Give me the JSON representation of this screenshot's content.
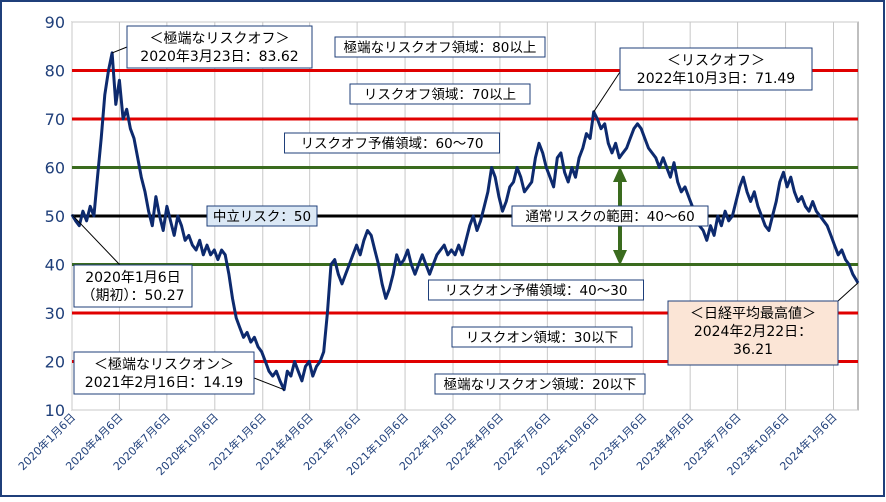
{
  "chart_data": {
    "type": "line",
    "ylim": [
      10,
      90
    ],
    "yticks": [
      10,
      20,
      30,
      40,
      50,
      60,
      70,
      80,
      90
    ],
    "x_range": [
      "2020-01-06",
      "2024-02-22"
    ],
    "xticks": [
      "2020年1月6日",
      "2020年4月6日",
      "2020年7月6日",
      "2020年10月6日",
      "2021年1月6日",
      "2021年4月6日",
      "2021年7月6日",
      "2021年10月6日",
      "2022年1月6日",
      "2022年4月6日",
      "2022年7月6日",
      "2022年10月6日",
      "2023年1月6日",
      "2023年4月6日",
      "2023年7月6日",
      "2023年10月6日",
      "2024年1月6日"
    ],
    "reference_lines": [
      {
        "value": 80,
        "color": "#e00000",
        "label": "極端なリスクオフ領域：80以上"
      },
      {
        "value": 70,
        "color": "#e00000",
        "label": "リスクオフ領域：70以上"
      },
      {
        "value": 60,
        "color": "#3a6b1e",
        "label": "リスクオフ予備領域：60～70"
      },
      {
        "value": 50,
        "color": "#000000",
        "label": "中立リスク：50"
      },
      {
        "value": 40,
        "color": "#3a6b1e",
        "label": "リスクオン予備領域：40～30"
      },
      {
        "value": 30,
        "color": "#e00000",
        "label": "リスクオン領域：30以下"
      },
      {
        "value": 20,
        "color": "#e00000",
        "label": "極端なリスクオン領域：20以下"
      }
    ],
    "normal_range_label": "通常リスクの範囲：40～60",
    "annotations": [
      {
        "title": "＜極端なリスクオフ＞",
        "text": "2020年3月23日：83.62",
        "date": "2020-03-23",
        "value": 83.62
      },
      {
        "title": "＜リスクオフ＞",
        "text": "2022年10月3日：71.49",
        "date": "2022-10-03",
        "value": 71.49
      },
      {
        "title": "2020年1月6日",
        "text": "（期初）：50.27",
        "date": "2020-01-06",
        "value": 50.27
      },
      {
        "title": "＜極端なリスクオン＞",
        "text": "2021年2月16日：14.19",
        "date": "2021-02-16",
        "value": 14.19
      },
      {
        "title": "＜日経平均最高値＞",
        "text": "2024年2月22日：",
        "value_text": "36.21",
        "date": "2024-02-22",
        "value": 36.21
      }
    ],
    "series": [
      {
        "color": "#0d2a6e",
        "points": [
          [
            "2020-01-06",
            50.27
          ],
          [
            "2020-01-13",
            49
          ],
          [
            "2020-01-20",
            48
          ],
          [
            "2020-01-27",
            51
          ],
          [
            "2020-02-03",
            49
          ],
          [
            "2020-02-10",
            52
          ],
          [
            "2020-02-17",
            50
          ],
          [
            "2020-02-24",
            58
          ],
          [
            "2020-03-02",
            66
          ],
          [
            "2020-03-09",
            75
          ],
          [
            "2020-03-16",
            80
          ],
          [
            "2020-03-23",
            83.62
          ],
          [
            "2020-03-30",
            73
          ],
          [
            "2020-04-06",
            78
          ],
          [
            "2020-04-13",
            70
          ],
          [
            "2020-04-20",
            72
          ],
          [
            "2020-04-27",
            68
          ],
          [
            "2020-05-04",
            66
          ],
          [
            "2020-05-11",
            62
          ],
          [
            "2020-05-18",
            58
          ],
          [
            "2020-05-25",
            55
          ],
          [
            "2020-06-01",
            51
          ],
          [
            "2020-06-08",
            48
          ],
          [
            "2020-06-15",
            54
          ],
          [
            "2020-06-22",
            50
          ],
          [
            "2020-06-29",
            47
          ],
          [
            "2020-07-06",
            52
          ],
          [
            "2020-07-13",
            49
          ],
          [
            "2020-07-20",
            46
          ],
          [
            "2020-07-27",
            50
          ],
          [
            "2020-08-03",
            48
          ],
          [
            "2020-08-10",
            45
          ],
          [
            "2020-08-17",
            46
          ],
          [
            "2020-08-24",
            44
          ],
          [
            "2020-08-31",
            43
          ],
          [
            "2020-09-07",
            45
          ],
          [
            "2020-09-14",
            42
          ],
          [
            "2020-09-21",
            44
          ],
          [
            "2020-09-28",
            42
          ],
          [
            "2020-10-05",
            43
          ],
          [
            "2020-10-12",
            41
          ],
          [
            "2020-10-19",
            43
          ],
          [
            "2020-10-26",
            42
          ],
          [
            "2020-11-02",
            38
          ],
          [
            "2020-11-09",
            33
          ],
          [
            "2020-11-16",
            29
          ],
          [
            "2020-11-23",
            27
          ],
          [
            "2020-11-30",
            25
          ],
          [
            "2020-12-07",
            26
          ],
          [
            "2020-12-14",
            24
          ],
          [
            "2020-12-21",
            25
          ],
          [
            "2020-12-28",
            23
          ],
          [
            "2021-01-04",
            22
          ],
          [
            "2021-01-11",
            20
          ],
          [
            "2021-01-18",
            18
          ],
          [
            "2021-01-25",
            17
          ],
          [
            "2021-02-01",
            18
          ],
          [
            "2021-02-08",
            16
          ],
          [
            "2021-02-16",
            14.19
          ],
          [
            "2021-02-22",
            18
          ],
          [
            "2021-03-01",
            17
          ],
          [
            "2021-03-08",
            20
          ],
          [
            "2021-03-15",
            18
          ],
          [
            "2021-03-22",
            16
          ],
          [
            "2021-03-29",
            19
          ],
          [
            "2021-04-05",
            20
          ],
          [
            "2021-04-12",
            17
          ],
          [
            "2021-04-19",
            19
          ],
          [
            "2021-04-26",
            20
          ],
          [
            "2021-05-03",
            22
          ],
          [
            "2021-05-10",
            30
          ],
          [
            "2021-05-17",
            40
          ],
          [
            "2021-05-24",
            41
          ],
          [
            "2021-05-31",
            38
          ],
          [
            "2021-06-07",
            36
          ],
          [
            "2021-06-14",
            38
          ],
          [
            "2021-06-21",
            40
          ],
          [
            "2021-06-28",
            42
          ],
          [
            "2021-07-05",
            44
          ],
          [
            "2021-07-12",
            42
          ],
          [
            "2021-07-19",
            45
          ],
          [
            "2021-07-26",
            47
          ],
          [
            "2021-08-02",
            46
          ],
          [
            "2021-08-09",
            43
          ],
          [
            "2021-08-16",
            40
          ],
          [
            "2021-08-23",
            36
          ],
          [
            "2021-08-30",
            33
          ],
          [
            "2021-09-06",
            35
          ],
          [
            "2021-09-13",
            38
          ],
          [
            "2021-09-20",
            42
          ],
          [
            "2021-09-27",
            40
          ],
          [
            "2021-10-04",
            41
          ],
          [
            "2021-10-11",
            43
          ],
          [
            "2021-10-18",
            40
          ],
          [
            "2021-10-25",
            38
          ],
          [
            "2021-11-01",
            40
          ],
          [
            "2021-11-08",
            42
          ],
          [
            "2021-11-15",
            40
          ],
          [
            "2021-11-22",
            38
          ],
          [
            "2021-11-29",
            40
          ],
          [
            "2021-12-06",
            42
          ],
          [
            "2021-12-13",
            43
          ],
          [
            "2021-12-20",
            44
          ],
          [
            "2021-12-27",
            42
          ],
          [
            "2022-01-03",
            43
          ],
          [
            "2022-01-10",
            42
          ],
          [
            "2022-01-17",
            44
          ],
          [
            "2022-01-24",
            42
          ],
          [
            "2022-01-31",
            45
          ],
          [
            "2022-02-07",
            48
          ],
          [
            "2022-02-14",
            50
          ],
          [
            "2022-02-21",
            47
          ],
          [
            "2022-02-28",
            49
          ],
          [
            "2022-03-07",
            52
          ],
          [
            "2022-03-14",
            55
          ],
          [
            "2022-03-21",
            60
          ],
          [
            "2022-03-28",
            58
          ],
          [
            "2022-04-04",
            54
          ],
          [
            "2022-04-11",
            51
          ],
          [
            "2022-04-18",
            53
          ],
          [
            "2022-04-25",
            56
          ],
          [
            "2022-05-02",
            57
          ],
          [
            "2022-05-09",
            60
          ],
          [
            "2022-05-16",
            58
          ],
          [
            "2022-05-23",
            55
          ],
          [
            "2022-05-30",
            56
          ],
          [
            "2022-06-06",
            57
          ],
          [
            "2022-06-13",
            62
          ],
          [
            "2022-06-20",
            65
          ],
          [
            "2022-06-27",
            63
          ],
          [
            "2022-07-04",
            60
          ],
          [
            "2022-07-11",
            58
          ],
          [
            "2022-07-18",
            56
          ],
          [
            "2022-07-25",
            62
          ],
          [
            "2022-08-01",
            63
          ],
          [
            "2022-08-08",
            59
          ],
          [
            "2022-08-15",
            57
          ],
          [
            "2022-08-22",
            60
          ],
          [
            "2022-08-29",
            58
          ],
          [
            "2022-09-05",
            62
          ],
          [
            "2022-09-12",
            64
          ],
          [
            "2022-09-19",
            67
          ],
          [
            "2022-09-26",
            66
          ],
          [
            "2022-10-03",
            71.49
          ],
          [
            "2022-10-10",
            70
          ],
          [
            "2022-10-17",
            68
          ],
          [
            "2022-10-24",
            69
          ],
          [
            "2022-10-31",
            65
          ],
          [
            "2022-11-07",
            63
          ],
          [
            "2022-11-14",
            65
          ],
          [
            "2022-11-21",
            62
          ],
          [
            "2022-11-28",
            63
          ],
          [
            "2022-12-05",
            64
          ],
          [
            "2022-12-12",
            66
          ],
          [
            "2022-12-19",
            68
          ],
          [
            "2022-12-26",
            69
          ],
          [
            "2023-01-02",
            68
          ],
          [
            "2023-01-09",
            66
          ],
          [
            "2023-01-16",
            64
          ],
          [
            "2023-01-23",
            63
          ],
          [
            "2023-01-30",
            62
          ],
          [
            "2023-02-06",
            60
          ],
          [
            "2023-02-13",
            62
          ],
          [
            "2023-02-20",
            60
          ],
          [
            "2023-02-27",
            58
          ],
          [
            "2023-03-06",
            61
          ],
          [
            "2023-03-13",
            57
          ],
          [
            "2023-03-20",
            55
          ],
          [
            "2023-03-27",
            56
          ],
          [
            "2023-04-03",
            54
          ],
          [
            "2023-04-10",
            52
          ],
          [
            "2023-04-17",
            50
          ],
          [
            "2023-04-24",
            48
          ],
          [
            "2023-05-01",
            47
          ],
          [
            "2023-05-08",
            45
          ],
          [
            "2023-05-15",
            48
          ],
          [
            "2023-05-22",
            46
          ],
          [
            "2023-05-29",
            50
          ],
          [
            "2023-06-05",
            48
          ],
          [
            "2023-06-12",
            51
          ],
          [
            "2023-06-19",
            49
          ],
          [
            "2023-06-26",
            50
          ],
          [
            "2023-07-03",
            53
          ],
          [
            "2023-07-10",
            56
          ],
          [
            "2023-07-17",
            58
          ],
          [
            "2023-07-24",
            55
          ],
          [
            "2023-07-31",
            53
          ],
          [
            "2023-08-07",
            55
          ],
          [
            "2023-08-14",
            52
          ],
          [
            "2023-08-21",
            50
          ],
          [
            "2023-08-28",
            48
          ],
          [
            "2023-09-04",
            47
          ],
          [
            "2023-09-11",
            50
          ],
          [
            "2023-09-18",
            53
          ],
          [
            "2023-09-25",
            57
          ],
          [
            "2023-10-02",
            59
          ],
          [
            "2023-10-09",
            56
          ],
          [
            "2023-10-16",
            58
          ],
          [
            "2023-10-23",
            55
          ],
          [
            "2023-10-30",
            53
          ],
          [
            "2023-11-06",
            54
          ],
          [
            "2023-11-13",
            52
          ],
          [
            "2023-11-20",
            51
          ],
          [
            "2023-11-27",
            53
          ],
          [
            "2023-12-04",
            51
          ],
          [
            "2023-12-11",
            50
          ],
          [
            "2023-12-18",
            49
          ],
          [
            "2023-12-25",
            48
          ],
          [
            "2024-01-01",
            46
          ],
          [
            "2024-01-08",
            44
          ],
          [
            "2024-01-15",
            42
          ],
          [
            "2024-01-22",
            43
          ],
          [
            "2024-01-29",
            41
          ],
          [
            "2024-02-05",
            40
          ],
          [
            "2024-02-12",
            38
          ],
          [
            "2024-02-22",
            36.21
          ]
        ]
      }
    ]
  }
}
